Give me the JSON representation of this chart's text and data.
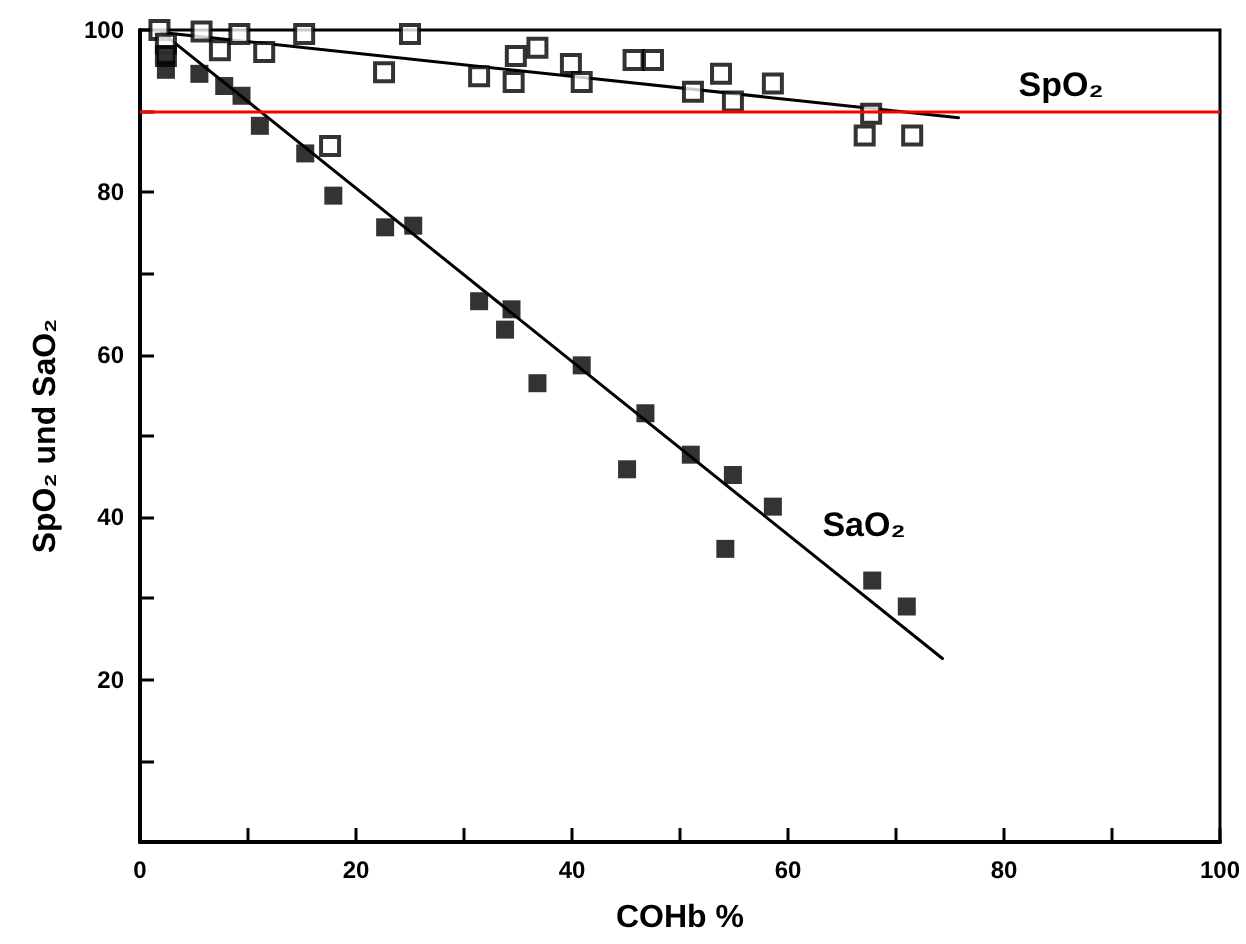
{
  "chart_data": {
    "type": "scatter",
    "xlabel": "COHb %",
    "ylabel": "SpO₂ und SaO₂",
    "xlim": [
      0,
      100
    ],
    "ylim": [
      0,
      100
    ],
    "xticks": [
      0,
      {
        "value": 10,
        "label": null
      },
      20,
      {
        "value": 30,
        "label": null
      },
      40,
      {
        "value": 50,
        "label": null
      },
      60,
      {
        "value": 70,
        "label": null
      },
      80,
      {
        "value": 90,
        "label": null
      },
      100
    ],
    "yticks": [
      {
        "value": 0,
        "label": null
      },
      {
        "value": 10,
        "label": null
      },
      20,
      {
        "value": 30,
        "label": null
      },
      40,
      {
        "value": 50,
        "label": null
      },
      60,
      {
        "value": 70,
        "label": null
      },
      80,
      {
        "value": 90,
        "label": null
      },
      100
    ],
    "grid": false,
    "legend": false,
    "marker": "square",
    "ref_lines": [
      {
        "axis": "y",
        "value": 90,
        "color": "#ff0000"
      }
    ],
    "series": [
      {
        "name": "SpO₂",
        "color": "#000000",
        "x": [
          1.8,
          2.4,
          2.4,
          5.7,
          7.4,
          9.2,
          11.5,
          15.2,
          17.6,
          22.6,
          25,
          31.4,
          34.6,
          34.8,
          36.8,
          39.9,
          40.9,
          45.7,
          47.5,
          51.2,
          53.8,
          54.9,
          58.6,
          67.7,
          67.1,
          71.5
        ],
        "values": [
          100,
          98.3,
          96.8,
          99.8,
          97.5,
          99.5,
          97.3,
          99.5,
          85.7,
          94.8,
          99.5,
          94.3,
          93.6,
          96.8,
          97.8,
          95.8,
          93.6,
          96.3,
          96.3,
          92.4,
          94.6,
          91.2,
          93.4,
          89.7,
          87,
          87
        ]
      },
      {
        "type": "line",
        "color": "#000000",
        "marker": "none",
        "x": [
          2,
          75.8
        ],
        "values": [
          99.7,
          89.2
        ]
      },
      {
        "name": "SaO₂",
        "color": "#000000",
        "x": [
          2.4,
          2.4,
          5.5,
          7.8,
          9.4,
          11.1,
          15.3,
          17.9,
          22.7,
          25.3,
          31.4,
          34.4,
          33.8,
          36.8,
          40.9,
          46.8,
          45.1,
          51,
          54.9,
          54.2,
          58.6,
          67.8,
          71
        ],
        "values": [
          97,
          95.1,
          94.6,
          93.1,
          91.9,
          88.2,
          84.8,
          79.6,
          75.7,
          75.9,
          66.6,
          65.6,
          63.1,
          56.5,
          58.7,
          52.8,
          45.9,
          47.7,
          45.2,
          36.1,
          41.3,
          32.2,
          29
        ]
      },
      {
        "type": "line",
        "color": "#000000",
        "marker": "none",
        "x": [
          2.2,
          74.3
        ],
        "values": [
          99.5,
          22.6
        ]
      }
    ]
  }
}
